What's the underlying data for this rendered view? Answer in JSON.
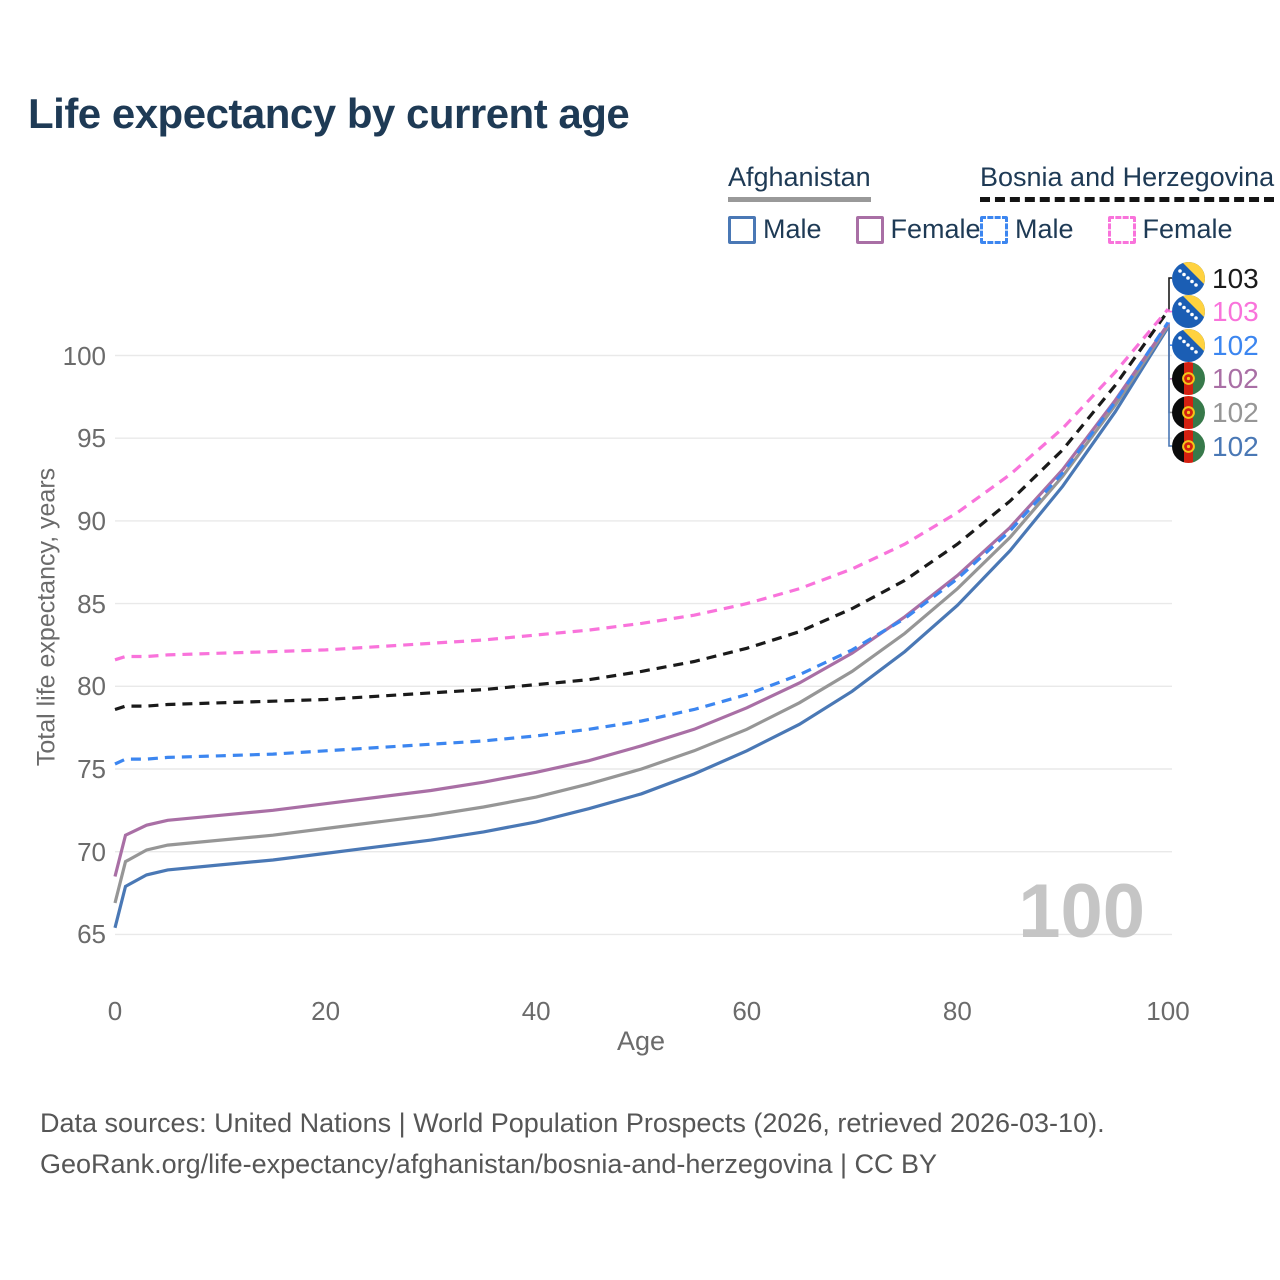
{
  "page": {
    "title": "Life expectancy by current age",
    "watermark": "100",
    "footer": {
      "line1": "Data sources: United Nations | World Population Prospects (2026, retrieved 2026-03-10).",
      "line2": "GeoRank.org/life-expectancy/afghanistan/bosnia-and-herzegovina | CC BY"
    }
  },
  "legend": {
    "groups": [
      {
        "country": "Afghanistan",
        "line_style": "solid",
        "underline_color": "#999999",
        "items": [
          {
            "label": "Male",
            "color": "#4a78b5"
          },
          {
            "label": "Female",
            "color": "#a96fa5"
          }
        ]
      },
      {
        "country": "Bosnia and Herzegovina",
        "line_style": "dashed",
        "underline_color": "#141414",
        "items": [
          {
            "label": "Male",
            "color": "#3c86f0"
          },
          {
            "label": "Female",
            "color": "#f973db"
          }
        ]
      }
    ]
  },
  "chart_data": {
    "type": "line",
    "title": "Life expectancy by current age",
    "xlabel": "Age",
    "ylabel": "Total life expectancy, years",
    "x_ticks": [
      0,
      20,
      40,
      60,
      80,
      100
    ],
    "y_ticks": [
      65,
      70,
      75,
      80,
      85,
      90,
      95,
      100
    ],
    "xlim": [
      0,
      100
    ],
    "ylim": [
      62,
      104
    ],
    "grid": "horizontal",
    "legend_position": "top-right",
    "ages": [
      0,
      1,
      3,
      5,
      10,
      15,
      20,
      25,
      30,
      35,
      40,
      45,
      50,
      55,
      60,
      65,
      70,
      75,
      80,
      85,
      90,
      95,
      100
    ],
    "series": [
      {
        "name": "Afghanistan — Male",
        "country": "Afghanistan",
        "sex": "Male",
        "style": "solid",
        "color": "#4a78b5",
        "values": [
          65.4,
          67.9,
          68.6,
          68.9,
          69.2,
          69.5,
          69.9,
          70.3,
          70.7,
          71.2,
          71.8,
          72.6,
          73.5,
          74.7,
          76.1,
          77.7,
          79.7,
          82.1,
          84.9,
          88.2,
          92.1,
          96.6,
          101.7
        ]
      },
      {
        "name": "Afghanistan — Both sexes",
        "country": "Afghanistan",
        "sex": "Both",
        "style": "solid",
        "color": "#969696",
        "values": [
          66.9,
          69.4,
          70.1,
          70.4,
          70.7,
          71.0,
          71.4,
          71.8,
          72.2,
          72.7,
          73.3,
          74.1,
          75.0,
          76.1,
          77.4,
          79.0,
          80.9,
          83.2,
          85.9,
          89.0,
          92.7,
          97.0,
          101.8
        ]
      },
      {
        "name": "Afghanistan — Female",
        "country": "Afghanistan",
        "sex": "Female",
        "style": "solid",
        "color": "#a96fa5",
        "values": [
          68.5,
          71.0,
          71.6,
          71.9,
          72.2,
          72.5,
          72.9,
          73.3,
          73.7,
          74.2,
          74.8,
          75.5,
          76.4,
          77.4,
          78.7,
          80.2,
          82.0,
          84.2,
          86.7,
          89.6,
          93.1,
          97.3,
          101.9
        ]
      },
      {
        "name": "Bosnia and Herzegovina — Male",
        "country": "Bosnia and Herzegovina",
        "sex": "Male",
        "style": "dashed",
        "color": "#3c86f0",
        "values": [
          75.3,
          75.6,
          75.6,
          75.7,
          75.8,
          75.9,
          76.1,
          76.3,
          76.5,
          76.7,
          77.0,
          77.4,
          77.9,
          78.6,
          79.5,
          80.7,
          82.2,
          84.1,
          86.5,
          89.4,
          92.9,
          97.2,
          102.0
        ]
      },
      {
        "name": "Bosnia and Herzegovina — Both sexes",
        "country": "Bosnia and Herzegovina",
        "sex": "Both",
        "style": "dashed",
        "color": "#1a1a1a",
        "values": [
          78.6,
          78.8,
          78.8,
          78.9,
          79.0,
          79.1,
          79.2,
          79.4,
          79.6,
          79.8,
          80.1,
          80.4,
          80.9,
          81.5,
          82.3,
          83.3,
          84.7,
          86.4,
          88.6,
          91.2,
          94.3,
          98.2,
          102.7
        ]
      },
      {
        "name": "Bosnia and Herzegovina — Female",
        "country": "Bosnia and Herzegovina",
        "sex": "Female",
        "style": "dashed",
        "color": "#f973db",
        "values": [
          81.6,
          81.8,
          81.8,
          81.9,
          82.0,
          82.1,
          82.2,
          82.4,
          82.6,
          82.8,
          83.1,
          83.4,
          83.8,
          84.3,
          85.0,
          85.9,
          87.1,
          88.6,
          90.5,
          92.8,
          95.6,
          99.0,
          102.8
        ]
      }
    ],
    "end_labels": [
      {
        "value": "103",
        "flag": "bosnia-and-herzegovina",
        "color": "#1a1a1a",
        "series_index": 4
      },
      {
        "value": "103",
        "flag": "bosnia-and-herzegovina",
        "color": "#f973db",
        "series_index": 5
      },
      {
        "value": "102",
        "flag": "bosnia-and-herzegovina",
        "color": "#3c86f0",
        "series_index": 3
      },
      {
        "value": "102",
        "flag": "afghanistan",
        "color": "#a96fa5",
        "series_index": 2
      },
      {
        "value": "102",
        "flag": "afghanistan",
        "color": "#969696",
        "series_index": 1
      },
      {
        "value": "102",
        "flag": "afghanistan",
        "color": "#4a78b5",
        "series_index": 0
      }
    ]
  }
}
